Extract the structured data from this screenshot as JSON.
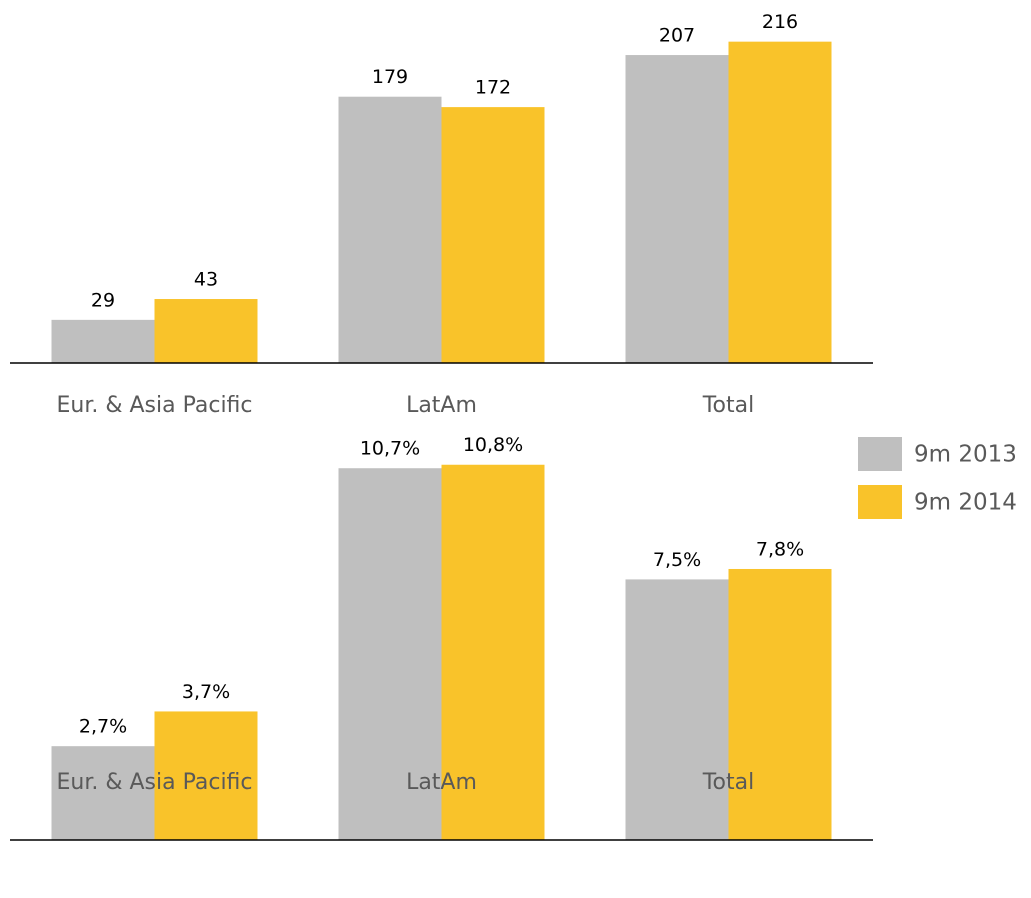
{
  "chart_data": [
    {
      "type": "bar",
      "categories": [
        "Eur. & Asia Pacific",
        "LatAm",
        "Total"
      ],
      "series": [
        {
          "name": "9m 2013",
          "color": "#bfbfbf",
          "values": [
            29,
            179,
            207
          ]
        },
        {
          "name": "9m 2014",
          "color": "#f9c32a",
          "values": [
            43,
            172,
            216
          ]
        }
      ],
      "ylim": [
        0,
        244
      ]
    },
    {
      "type": "bar",
      "categories": [
        "Eur. & Asia Pacific",
        "LatAm",
        "Total"
      ],
      "series": [
        {
          "color": "#bfbfbf",
          "values": [
            2.7,
            10.7,
            7.5
          ],
          "value_labels": [
            "2,7%",
            "10,7%",
            "7,5%"
          ]
        },
        {
          "color": "#f9c32a",
          "values": [
            3.7,
            10.8,
            7.8
          ],
          "value_labels": [
            "3,7%",
            "10,8%",
            "7,8%"
          ]
        }
      ],
      "ylim": [
        0,
        11.8
      ]
    }
  ]
}
